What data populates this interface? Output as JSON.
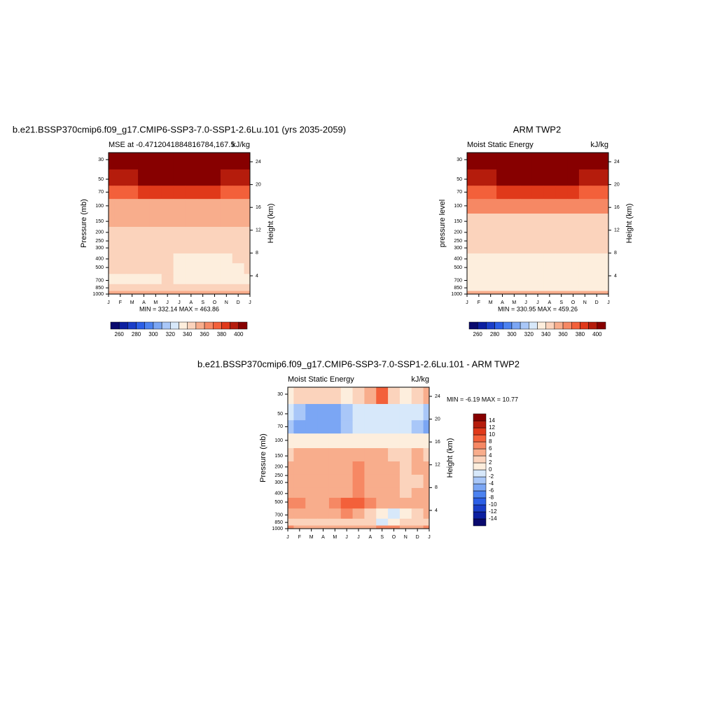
{
  "chart_data": [
    {
      "type": "contour",
      "title": "b.e21.BSSP370cmip6.f09_g17.CMIP6-SSP3-7.0-SSP1-2.6Lu.101 (yrs 2035-2059)",
      "left_string": "MSE at -0.4712041884816784,167.5",
      "right_string": "kJ/kg",
      "y_label": "Pressure (mb)",
      "y2_label": "Height (km)",
      "stats": "MIN = 332.14 MAX = 463.86",
      "categories": [
        "J",
        "F",
        "M",
        "A",
        "M",
        "J",
        "J",
        "A",
        "S",
        "O",
        "N",
        "D",
        "J"
      ],
      "y": [
        30,
        50,
        70,
        100,
        150,
        200,
        300,
        400,
        500,
        700,
        850,
        1000
      ],
      "z": [
        [
          450,
          450,
          450,
          450,
          450,
          450,
          450,
          450,
          450,
          450,
          450,
          450,
          450
        ],
        [
          395,
          395,
          398,
          400,
          405,
          405,
          405,
          405,
          402,
          400,
          398,
          395,
          395
        ],
        [
          378,
          378,
          378,
          380,
          382,
          383,
          383,
          383,
          382,
          380,
          378,
          378,
          378
        ],
        [
          358,
          358,
          358,
          358,
          358,
          358,
          358,
          358,
          358,
          358,
          358,
          358,
          358
        ],
        [
          352,
          352,
          352,
          352,
          352,
          352,
          352,
          352,
          352,
          352,
          352,
          352,
          352
        ],
        [
          346,
          346,
          346,
          346,
          346,
          346,
          346,
          346,
          346,
          346,
          346,
          346,
          346
        ],
        [
          344,
          344,
          344,
          344,
          344,
          344,
          344,
          344,
          344,
          344,
          344,
          344,
          344
        ],
        [
          343,
          343,
          343,
          343,
          343,
          343,
          338,
          338,
          338,
          338,
          338,
          343,
          343
        ],
        [
          342,
          342,
          342,
          342,
          342,
          342,
          336,
          336,
          336,
          336,
          336,
          338,
          342
        ],
        [
          337,
          337,
          337,
          337,
          337,
          343,
          337,
          337,
          337,
          337,
          337,
          337,
          337
        ],
        [
          342,
          342,
          342,
          342,
          342,
          342,
          342,
          342,
          342,
          342,
          342,
          342,
          342
        ],
        [
          352,
          352,
          352,
          352,
          352,
          352,
          352,
          352,
          352,
          352,
          352,
          352,
          352
        ]
      ],
      "ylim": [
        1000,
        25
      ],
      "log": true,
      "yticks": [
        30,
        50,
        70,
        100,
        150,
        200,
        250,
        300,
        400,
        500,
        700,
        850,
        1000
      ],
      "y2lim": [
        0.8,
        25.6
      ],
      "y2ticks": [
        4,
        8,
        12,
        16,
        20,
        24
      ],
      "levels": [
        260,
        270,
        280,
        290,
        300,
        310,
        320,
        330,
        340,
        350,
        360,
        370,
        380,
        390,
        400
      ],
      "colors": [
        "#0a0a6e",
        "#0c1fa0",
        "#1a3ec8",
        "#2c5fe6",
        "#4c82f0",
        "#7ba6f4",
        "#a9c7f8",
        "#d7e8fa",
        "#fdeedd",
        "#fbd3bc",
        "#f8ad8c",
        "#f68864",
        "#f3603a",
        "#e0391a",
        "#b51c0c",
        "#870000"
      ],
      "colorbar": "horizontal",
      "colorbar_ticks": [
        260,
        280,
        300,
        320,
        340,
        360,
        380,
        400
      ]
    },
    {
      "type": "contour",
      "title": "ARM TWP2",
      "left_string": "Moist Static Energy",
      "right_string": "kJ/kg",
      "y_label": "pressure level",
      "y2_label": "Height (km)",
      "stats": "MIN = 330.95 MAX = 459.26",
      "categories": [
        "J",
        "F",
        "M",
        "A",
        "M",
        "J",
        "J",
        "A",
        "S",
        "O",
        "N",
        "D",
        "J"
      ],
      "y": [
        30,
        50,
        70,
        100,
        150,
        200,
        300,
        400,
        500,
        700,
        850,
        1000
      ],
      "z": [
        [
          450,
          450,
          450,
          450,
          450,
          450,
          450,
          450,
          450,
          450,
          450,
          450,
          450
        ],
        [
          395,
          395,
          398,
          400,
          403,
          405,
          405,
          405,
          402,
          400,
          398,
          395,
          395
        ],
        [
          378,
          378,
          378,
          380,
          382,
          383,
          383,
          383,
          382,
          380,
          378,
          378,
          378
        ],
        [
          360,
          360,
          360,
          360,
          360,
          360,
          360,
          360,
          360,
          360,
          360,
          360,
          360
        ],
        [
          348,
          348,
          348,
          348,
          348,
          348,
          348,
          348,
          348,
          348,
          348,
          348,
          348
        ],
        [
          346,
          346,
          346,
          346,
          346,
          346,
          346,
          346,
          346,
          346,
          346,
          346,
          346
        ],
        [
          345,
          345,
          345,
          345,
          345,
          345,
          345,
          345,
          345,
          345,
          345,
          345,
          345
        ],
        [
          338,
          338,
          338,
          338,
          338,
          338,
          338,
          338,
          338,
          338,
          338,
          338,
          338
        ],
        [
          337,
          337,
          337,
          337,
          337,
          337,
          337,
          337,
          337,
          337,
          337,
          337,
          337
        ],
        [
          336,
          336,
          336,
          336,
          336,
          336,
          336,
          336,
          336,
          336,
          336,
          336,
          336
        ],
        [
          338,
          338,
          338,
          338,
          338,
          338,
          338,
          338,
          338,
          338,
          338,
          338,
          338
        ],
        [
          350,
          350,
          350,
          350,
          350,
          350,
          350,
          350,
          350,
          350,
          350,
          350,
          350
        ]
      ],
      "ylim": [
        1000,
        25
      ],
      "log": true,
      "yticks": [
        30,
        50,
        70,
        100,
        150,
        200,
        250,
        300,
        400,
        500,
        700,
        850,
        1000
      ],
      "y2lim": [
        0.8,
        25.6
      ],
      "y2ticks": [
        4,
        8,
        12,
        16,
        20,
        24
      ],
      "levels": [
        260,
        270,
        280,
        290,
        300,
        310,
        320,
        330,
        340,
        350,
        360,
        370,
        380,
        390,
        400
      ],
      "colors": [
        "#0a0a6e",
        "#0c1fa0",
        "#1a3ec8",
        "#2c5fe6",
        "#4c82f0",
        "#7ba6f4",
        "#a9c7f8",
        "#d7e8fa",
        "#fdeedd",
        "#fbd3bc",
        "#f8ad8c",
        "#f68864",
        "#f3603a",
        "#e0391a",
        "#b51c0c",
        "#870000"
      ],
      "colorbar": "horizontal",
      "colorbar_ticks": [
        260,
        280,
        300,
        320,
        340,
        360,
        380,
        400
      ]
    },
    {
      "type": "contour",
      "title": "b.e21.BSSP370cmip6.f09_g17.CMIP6-SSP3-7.0-SSP1-2.6Lu.101 - ARM TWP2",
      "left_string": "Moist Static Energy",
      "right_string": "kJ/kg",
      "y_label": "Pressure (mb)",
      "y2_label": "Height (km)",
      "stats": "MIN =  -6.19 MAX =  10.77",
      "categories": [
        "J",
        "F",
        "M",
        "A",
        "M",
        "J",
        "J",
        "A",
        "S",
        "O",
        "N",
        "D",
        "J"
      ],
      "y": [
        30,
        50,
        70,
        100,
        150,
        200,
        300,
        400,
        500,
        700,
        850,
        1000
      ],
      "z": [
        [
          1,
          3,
          3,
          3,
          3,
          1,
          3,
          5,
          9,
          3,
          1,
          3,
          5
        ],
        [
          -1,
          -3,
          -5,
          -5,
          -5,
          -3,
          -1,
          -1,
          -1,
          -1,
          -1,
          -1,
          -3
        ],
        [
          -3,
          -5,
          -5,
          -5,
          -5,
          -3,
          -1,
          -1,
          -1,
          -1,
          -1,
          -3,
          -5
        ],
        [
          1,
          1,
          1,
          1,
          1,
          1,
          1,
          1,
          1,
          1,
          1,
          1,
          1
        ],
        [
          3,
          5,
          5,
          5,
          5,
          5,
          5,
          5,
          5,
          3,
          3,
          5,
          3
        ],
        [
          5,
          5,
          5,
          5,
          5,
          5,
          7,
          5,
          5,
          5,
          3,
          5,
          5
        ],
        [
          5,
          5,
          5,
          5,
          5,
          5,
          7,
          5,
          5,
          5,
          3,
          3,
          5
        ],
        [
          5,
          5,
          5,
          5,
          5,
          5,
          7,
          5,
          5,
          5,
          3,
          5,
          5
        ],
        [
          7,
          7,
          5,
          5,
          7,
          9,
          9,
          7,
          5,
          5,
          5,
          5,
          5
        ],
        [
          5,
          5,
          5,
          5,
          5,
          7,
          5,
          3,
          1,
          -1,
          1,
          3,
          5
        ],
        [
          3,
          3,
          3,
          3,
          3,
          3,
          3,
          3,
          -1,
          1,
          3,
          3,
          3
        ],
        [
          7,
          5,
          5,
          5,
          5,
          5,
          5,
          5,
          7,
          7,
          5,
          5,
          7
        ]
      ],
      "ylim": [
        1000,
        25
      ],
      "log": true,
      "yticks": [
        30,
        50,
        70,
        100,
        150,
        200,
        250,
        300,
        400,
        500,
        700,
        850,
        1000
      ],
      "y2lim": [
        0.8,
        25.6
      ],
      "y2ticks": [
        4,
        8,
        12,
        16,
        20,
        24
      ],
      "levels": [
        -14,
        -12,
        -10,
        -8,
        -6,
        -4,
        -2,
        0,
        2,
        4,
        6,
        8,
        10,
        12,
        14
      ],
      "colors": [
        "#0a0a6e",
        "#0c1fa0",
        "#1a3ec8",
        "#2c5fe6",
        "#4c82f0",
        "#7ba6f4",
        "#a9c7f8",
        "#d7e8fa",
        "#fdeedd",
        "#fbd3bc",
        "#f8ad8c",
        "#f68864",
        "#f3603a",
        "#e0391a",
        "#b51c0c",
        "#870000"
      ],
      "colorbar": "vertical",
      "colorbar_ticks": [
        14,
        12,
        10,
        8,
        6,
        4,
        2,
        0,
        -2,
        -4,
        -6,
        -8,
        -10,
        -12,
        -14
      ]
    }
  ]
}
